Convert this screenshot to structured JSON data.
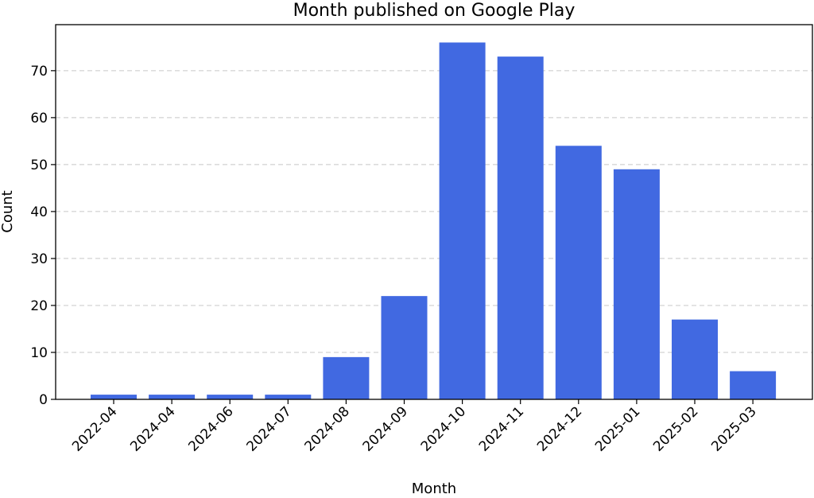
{
  "chart_data": {
    "type": "bar",
    "title": "Month published on Google Play",
    "xlabel": "Month",
    "ylabel": "Count",
    "categories": [
      "2022-04",
      "2024-04",
      "2024-06",
      "2024-07",
      "2024-08",
      "2024-09",
      "2024-10",
      "2024-11",
      "2024-12",
      "2025-01",
      "2025-02",
      "2025-03"
    ],
    "values": [
      1,
      1,
      1,
      1,
      9,
      22,
      76,
      73,
      54,
      49,
      17,
      6
    ],
    "ylim": [
      0,
      79.8
    ],
    "yticks": [
      0,
      10,
      20,
      30,
      40,
      50,
      60,
      70
    ],
    "grid": "horizontal-dashed",
    "legend": "none",
    "colors": {
      "bar": "#4169e1",
      "grid": "#c8c8c8",
      "axis": "#000000"
    }
  }
}
